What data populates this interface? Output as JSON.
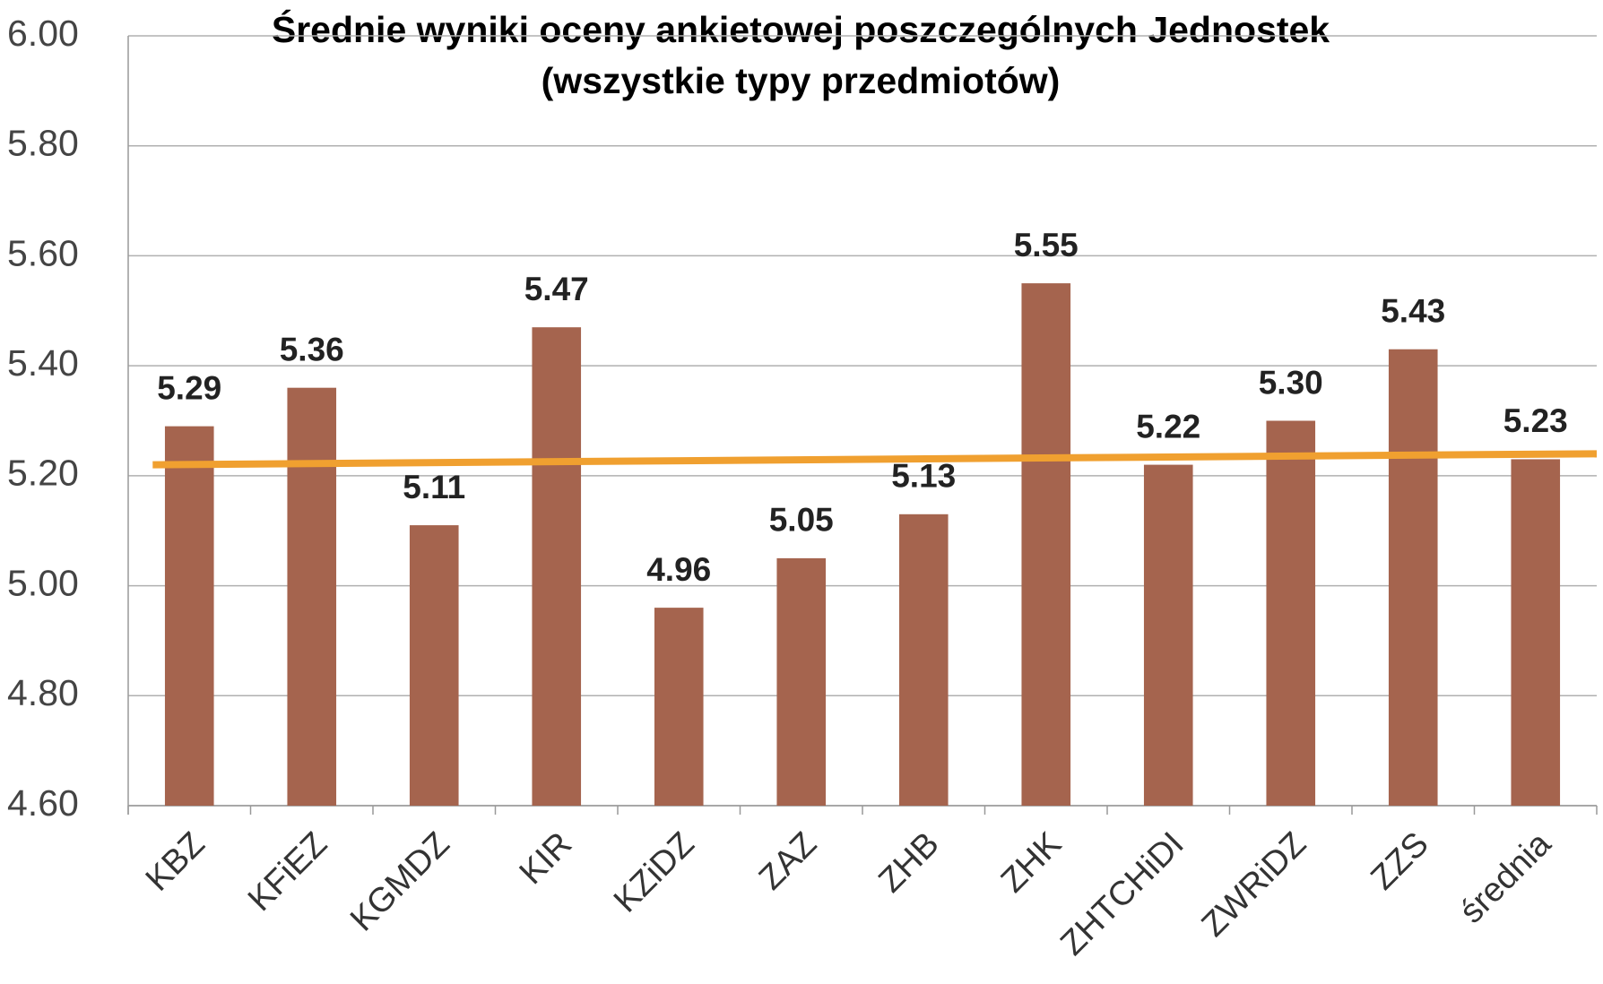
{
  "chart_data": {
    "type": "bar",
    "title": [
      "Średnie wyniki oceny ankietowej poszczególnych Jednostek",
      "(wszystkie typy przedmiotów)"
    ],
    "categories": [
      "KBZ",
      "KFiEZ",
      "KGMDZ",
      "KIR",
      "KZiDZ",
      "ZAZ",
      "ZHB",
      "ZHK",
      "ZHTCHiDI",
      "ZWRiDZ",
      "ZZS",
      "średnia"
    ],
    "values": [
      5.29,
      5.36,
      5.11,
      5.47,
      4.96,
      5.05,
      5.13,
      5.55,
      5.22,
      5.3,
      5.43,
      5.23
    ],
    "value_labels": [
      "5.29",
      "5.36",
      "5.11",
      "5.47",
      "4.96",
      "5.05",
      "5.13",
      "5.55",
      "5.22",
      "5.30",
      "5.43",
      "5.23"
    ],
    "color": "#a5644e",
    "trend_line": {
      "color": "#f0a030",
      "values": [
        5.22,
        5.24
      ]
    },
    "ylim": [
      4.6,
      6.0
    ],
    "yticks": [
      {
        "value": 4.6,
        "label": "4.60"
      },
      {
        "value": 4.8,
        "label": "4.80"
      },
      {
        "value": 5.0,
        "label": "5.00"
      },
      {
        "value": 5.2,
        "label": "5.20"
      },
      {
        "value": 5.4,
        "label": "5.40"
      },
      {
        "value": 5.6,
        "label": "5.60"
      },
      {
        "value": 5.8,
        "label": "5.80"
      },
      {
        "value": 6.0,
        "label": "6.00"
      }
    ],
    "grid": true
  }
}
